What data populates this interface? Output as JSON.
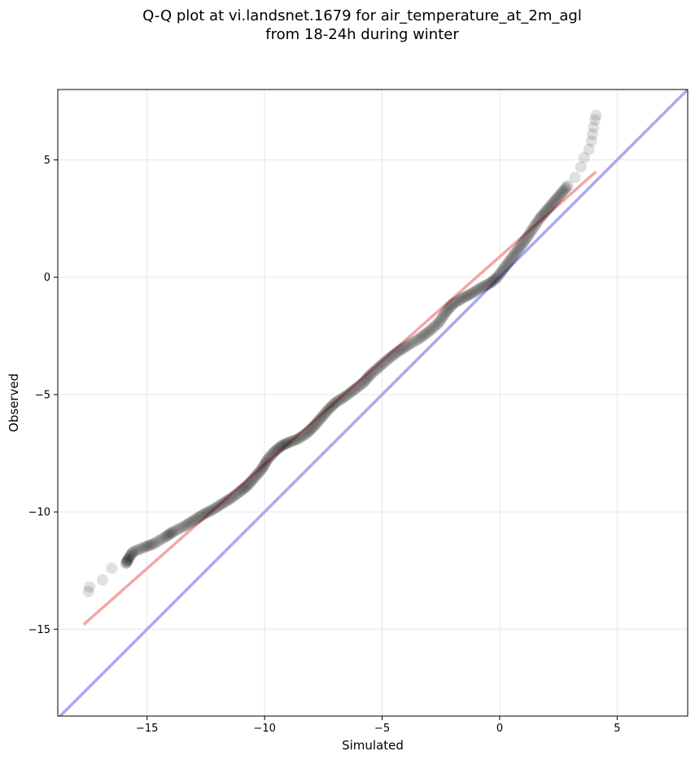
{
  "chart_data": {
    "type": "scatter",
    "title_line1": "Q-Q plot at vi.landsnet.1679 for air_temperature_at_2m_agl",
    "title_line2": "from 18-24h during winter",
    "xlabel": "Simulated",
    "ylabel": "Observed",
    "xlim": [
      -18.8,
      8.0
    ],
    "ylim": [
      -18.7,
      8.0
    ],
    "xticks": [
      -15,
      -10,
      -5,
      0,
      5
    ],
    "yticks": [
      5,
      0,
      -5,
      -10,
      -15
    ],
    "xtick_labels": [
      "−15",
      "−10",
      "−5",
      "0",
      "5"
    ],
    "ytick_labels": [
      "5",
      "0",
      "−5",
      "−10",
      "−15"
    ],
    "grid": true,
    "fit_line": {
      "color": "#f4a6a6",
      "x": [
        -17.7,
        4.1
      ],
      "y": [
        -14.8,
        4.5
      ]
    },
    "identity_line": {
      "color": "#a9a9f5"
    },
    "points_color": "#000000",
    "qq_points": [
      [
        -17.5,
        -13.4
      ],
      [
        -17.45,
        -13.2
      ],
      [
        -16.9,
        -12.9
      ],
      [
        -16.5,
        -12.4
      ],
      [
        -15.9,
        -12.2
      ],
      [
        -15.8,
        -12.0
      ],
      [
        -15.6,
        -11.7
      ],
      [
        -15.1,
        -11.5
      ],
      [
        -14.7,
        -11.35
      ],
      [
        -14.2,
        -11.05
      ],
      [
        -13.9,
        -10.85
      ],
      [
        -13.4,
        -10.6
      ],
      [
        -13.0,
        -10.35
      ],
      [
        -12.6,
        -10.1
      ],
      [
        -12.2,
        -9.9
      ],
      [
        -11.8,
        -9.65
      ],
      [
        -11.4,
        -9.4
      ],
      [
        -11.0,
        -9.1
      ],
      [
        -10.7,
        -8.85
      ],
      [
        -10.4,
        -8.5
      ],
      [
        -10.1,
        -8.15
      ],
      [
        -9.9,
        -7.8
      ],
      [
        -9.6,
        -7.45
      ],
      [
        -9.3,
        -7.2
      ],
      [
        -9.0,
        -7.05
      ],
      [
        -8.6,
        -6.9
      ],
      [
        -8.2,
        -6.65
      ],
      [
        -7.9,
        -6.35
      ],
      [
        -7.6,
        -6.0
      ],
      [
        -7.3,
        -5.65
      ],
      [
        -7.0,
        -5.35
      ],
      [
        -6.6,
        -5.1
      ],
      [
        -6.2,
        -4.8
      ],
      [
        -5.8,
        -4.5
      ],
      [
        -5.5,
        -4.15
      ],
      [
        -5.1,
        -3.8
      ],
      [
        -4.7,
        -3.45
      ],
      [
        -4.3,
        -3.15
      ],
      [
        -3.9,
        -2.9
      ],
      [
        -3.4,
        -2.6
      ],
      [
        -3.0,
        -2.3
      ],
      [
        -2.6,
        -1.95
      ],
      [
        -2.3,
        -1.5
      ],
      [
        -2.0,
        -1.15
      ],
      [
        -1.6,
        -0.9
      ],
      [
        -1.2,
        -0.7
      ],
      [
        -0.8,
        -0.45
      ],
      [
        -0.4,
        -0.25
      ],
      [
        -0.1,
        0.0
      ],
      [
        0.2,
        0.4
      ],
      [
        0.5,
        0.8
      ],
      [
        0.8,
        1.2
      ],
      [
        1.1,
        1.6
      ],
      [
        1.4,
        2.05
      ],
      [
        1.7,
        2.5
      ],
      [
        2.0,
        2.85
      ],
      [
        2.3,
        3.2
      ],
      [
        2.6,
        3.55
      ],
      [
        2.9,
        3.9
      ],
      [
        3.2,
        4.25
      ],
      [
        3.45,
        4.7
      ],
      [
        3.6,
        5.1
      ],
      [
        3.8,
        5.45
      ],
      [
        3.9,
        5.8
      ],
      [
        3.95,
        6.1
      ],
      [
        4.0,
        6.4
      ],
      [
        4.05,
        6.7
      ],
      [
        4.1,
        6.9
      ]
    ]
  }
}
